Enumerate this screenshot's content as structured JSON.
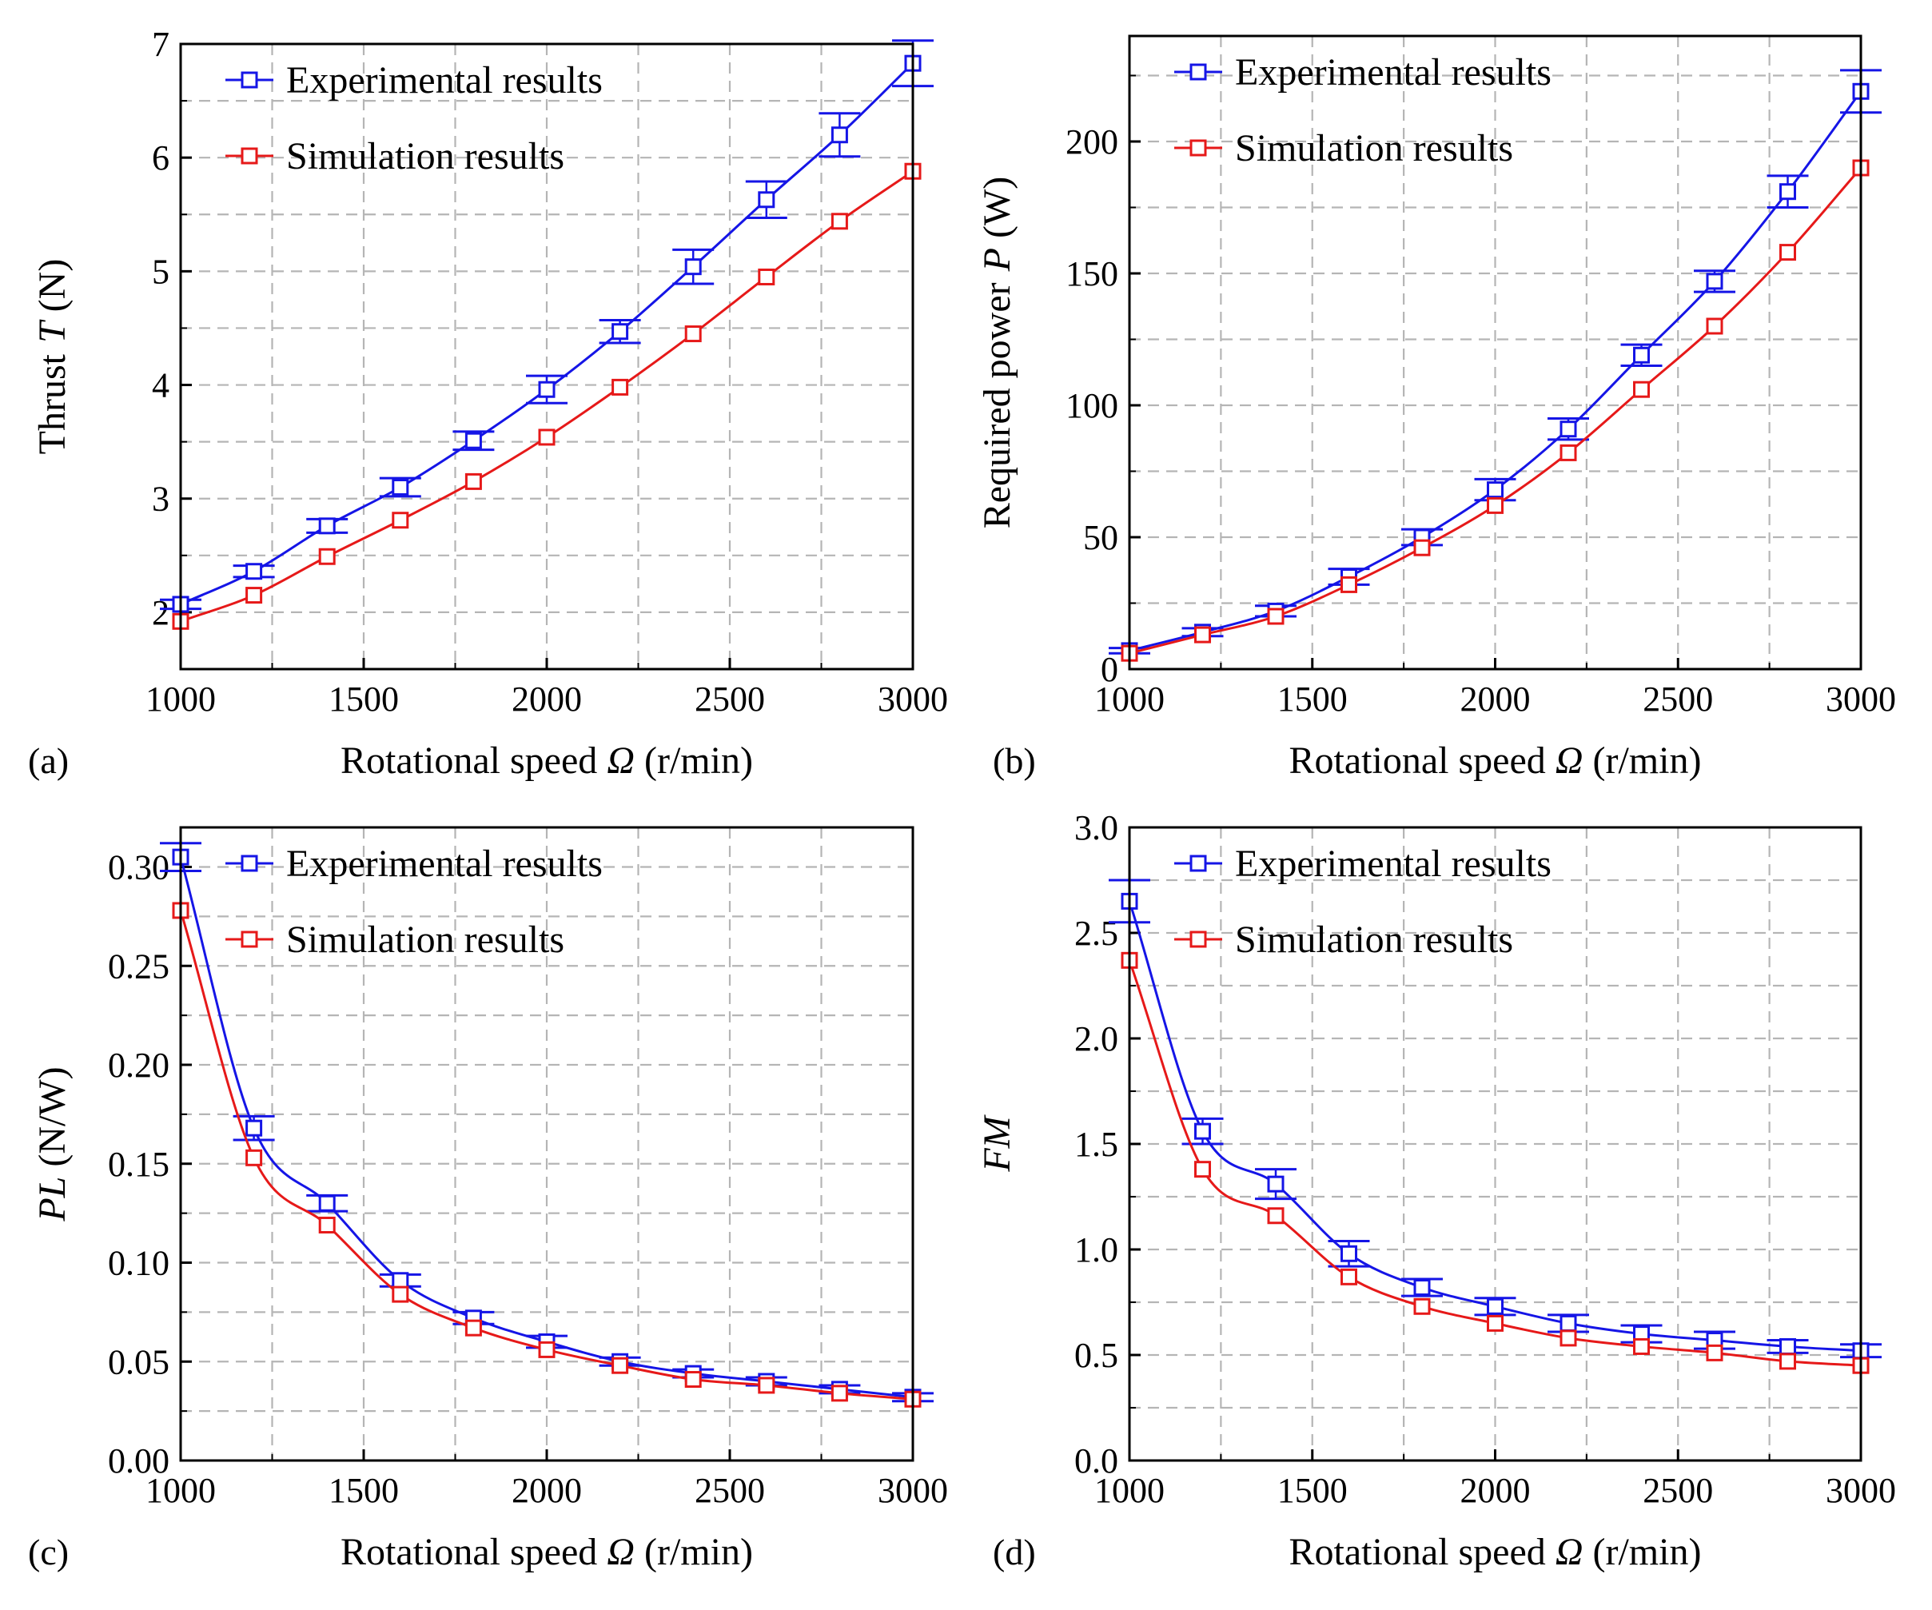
{
  "colors": {
    "experimental": "#1515e6",
    "simulation": "#e61919",
    "grid": "#b5b5b5"
  },
  "chart_data": [
    {
      "panel_label": "(a)",
      "type": "line",
      "xlabel_main": "Rotational speed",
      "xlabel_symbol": "Ω",
      "xlabel_unit": "(r/min)",
      "ylabel_main": "Thrust",
      "ylabel_symbol": "T",
      "ylabel_unit": "(N)",
      "xlim": [
        1000,
        3000
      ],
      "ylim": [
        1.5,
        7
      ],
      "x_ticks": [
        "1000",
        "1500",
        "2000",
        "2500",
        "3000"
      ],
      "y_ticks": [
        "2",
        "3",
        "4",
        "5",
        "6",
        "7"
      ],
      "y_tick_values": [
        2,
        3,
        4,
        5,
        6,
        7
      ],
      "y_grid": [
        2,
        2.5,
        3,
        3.5,
        4,
        4.5,
        5,
        5.5,
        6,
        6.5,
        7
      ],
      "x_grid": [
        1000,
        1250,
        1500,
        1750,
        2000,
        2250,
        2500,
        2750,
        3000
      ],
      "x": [
        1000,
        1200,
        1400,
        1600,
        1800,
        2000,
        2200,
        2400,
        2600,
        2800,
        3000
      ],
      "series": [
        {
          "name": "Experimental results",
          "key": "experimental",
          "values": [
            2.07,
            2.36,
            2.76,
            3.1,
            3.51,
            3.96,
            4.47,
            5.04,
            5.63,
            6.2,
            6.83
          ],
          "error": [
            0.04,
            0.05,
            0.06,
            0.08,
            0.08,
            0.12,
            0.1,
            0.15,
            0.16,
            0.19,
            0.2
          ]
        },
        {
          "name": "Simulation results",
          "key": "simulation",
          "values": [
            1.92,
            2.15,
            2.49,
            2.81,
            3.15,
            3.54,
            3.98,
            4.45,
            4.95,
            5.44,
            5.88
          ]
        }
      ],
      "legend_position": "top-left"
    },
    {
      "panel_label": "(b)",
      "type": "line",
      "xlabel_main": "Rotational speed",
      "xlabel_symbol": "Ω",
      "xlabel_unit": "(r/min)",
      "ylabel_main": "Required power",
      "ylabel_symbol": "P",
      "ylabel_unit": "(W)",
      "xlim": [
        1000,
        3000
      ],
      "ylim": [
        0,
        240
      ],
      "x_ticks": [
        "1000",
        "1500",
        "2000",
        "2500",
        "3000"
      ],
      "y_ticks": [
        "0",
        "50",
        "100",
        "150",
        "200"
      ],
      "y_tick_values": [
        0,
        50,
        100,
        150,
        200
      ],
      "y_grid": [
        25,
        50,
        75,
        100,
        125,
        150,
        175,
        200,
        225
      ],
      "x_grid": [
        1000,
        1250,
        1500,
        1750,
        2000,
        2250,
        2500,
        2750,
        3000
      ],
      "x": [
        1000,
        1200,
        1400,
        1600,
        1800,
        2000,
        2200,
        2400,
        2600,
        2800,
        3000
      ],
      "series": [
        {
          "name": "Experimental results",
          "key": "experimental",
          "values": [
            7,
            14,
            22,
            35,
            50,
            68,
            91,
            119,
            147,
            181,
            219
          ],
          "error": [
            1,
            1.5,
            2,
            3,
            3,
            4,
            4,
            4,
            4,
            6,
            8
          ]
        },
        {
          "name": "Simulation results",
          "key": "simulation",
          "values": [
            6,
            13,
            20,
            32,
            46,
            62,
            82,
            106,
            130,
            158,
            190
          ]
        }
      ],
      "legend_position": "top-left"
    },
    {
      "panel_label": "(c)",
      "type": "line",
      "xlabel_main": "Rotational speed",
      "xlabel_symbol": "Ω",
      "xlabel_unit": "(r/min)",
      "ylabel_main": "",
      "ylabel_symbol": "PL",
      "ylabel_unit": "(N/W)",
      "xlim": [
        1000,
        3000
      ],
      "ylim": [
        0,
        0.32
      ],
      "x_ticks": [
        "1000",
        "1500",
        "2000",
        "2500",
        "3000"
      ],
      "y_ticks": [
        "0.00",
        "0.05",
        "0.10",
        "0.15",
        "0.20",
        "0.25",
        "0.30"
      ],
      "y_tick_values": [
        0,
        0.05,
        0.1,
        0.15,
        0.2,
        0.25,
        0.3
      ],
      "y_grid": [
        0.025,
        0.05,
        0.075,
        0.1,
        0.125,
        0.15,
        0.175,
        0.2,
        0.225,
        0.25,
        0.275,
        0.3
      ],
      "x_grid": [
        1000,
        1250,
        1500,
        1750,
        2000,
        2250,
        2500,
        2750,
        3000
      ],
      "x": [
        1000,
        1200,
        1400,
        1600,
        1800,
        2000,
        2200,
        2400,
        2600,
        2800,
        3000
      ],
      "series": [
        {
          "name": "Experimental results",
          "key": "experimental",
          "values": [
            0.305,
            0.168,
            0.13,
            0.091,
            0.072,
            0.06,
            0.05,
            0.044,
            0.04,
            0.036,
            0.032
          ],
          "error": [
            0.007,
            0.006,
            0.004,
            0.003,
            0.003,
            0.003,
            0.002,
            0.002,
            0.002,
            0.002,
            0.002
          ]
        },
        {
          "name": "Simulation results",
          "key": "simulation",
          "values": [
            0.278,
            0.153,
            0.119,
            0.084,
            0.067,
            0.056,
            0.048,
            0.041,
            0.038,
            0.034,
            0.031
          ]
        }
      ],
      "legend_position": "top-left"
    },
    {
      "panel_label": "(d)",
      "type": "line",
      "xlabel_main": "Rotational speed",
      "xlabel_symbol": "Ω",
      "xlabel_unit": "(r/min)",
      "ylabel_main": "",
      "ylabel_symbol": "FM",
      "ylabel_unit": "",
      "xlim": [
        1000,
        3000
      ],
      "ylim": [
        0,
        3.0
      ],
      "x_ticks": [
        "1000",
        "1500",
        "2000",
        "2500",
        "3000"
      ],
      "y_ticks": [
        "0.0",
        "0.5",
        "1.0",
        "1.5",
        "2.0",
        "2.5",
        "3.0"
      ],
      "y_tick_values": [
        0,
        0.5,
        1,
        1.5,
        2,
        2.5,
        3
      ],
      "y_grid": [
        0.25,
        0.5,
        0.75,
        1,
        1.25,
        1.5,
        1.75,
        2,
        2.25,
        2.5,
        2.75
      ],
      "x_grid": [
        1000,
        1250,
        1500,
        1750,
        2000,
        2250,
        2500,
        2750,
        3000
      ],
      "x": [
        1000,
        1200,
        1400,
        1600,
        1800,
        2000,
        2200,
        2400,
        2600,
        2800,
        3000
      ],
      "series": [
        {
          "name": "Experimental results",
          "key": "experimental",
          "values": [
            2.65,
            1.56,
            1.31,
            0.98,
            0.82,
            0.73,
            0.65,
            0.6,
            0.57,
            0.54,
            0.52
          ],
          "error": [
            0.1,
            0.06,
            0.07,
            0.06,
            0.04,
            0.04,
            0.04,
            0.04,
            0.04,
            0.03,
            0.03
          ]
        },
        {
          "name": "Simulation results",
          "key": "simulation",
          "values": [
            2.37,
            1.38,
            1.16,
            0.87,
            0.73,
            0.65,
            0.58,
            0.54,
            0.51,
            0.47,
            0.45
          ]
        }
      ],
      "legend_position": "top-left"
    }
  ]
}
